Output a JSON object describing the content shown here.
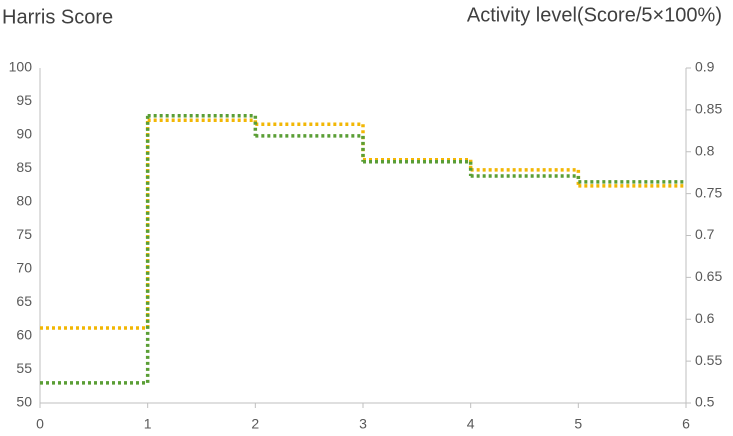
{
  "chart_data": {
    "type": "step",
    "title_left": "Harris Score",
    "title_right": "Activity level(Score/5×100%)",
    "xlim": [
      0,
      6
    ],
    "xticks": [
      0,
      1,
      2,
      3,
      4,
      5,
      6
    ],
    "ylim": [
      50,
      100
    ],
    "yticks": [
      50,
      55,
      60,
      65,
      70,
      75,
      80,
      85,
      90,
      95,
      100
    ],
    "y2lim": [
      0.5,
      0.9
    ],
    "y2ticks": [
      0.5,
      0.55,
      0.6,
      0.65,
      0.7,
      0.75,
      0.8,
      0.85,
      0.9
    ],
    "x": [
      0,
      1,
      2,
      3,
      4,
      5
    ],
    "series": [
      {
        "color": "#f2b705",
        "values": [
          61.2,
          92.2,
          91.6,
          86.3,
          84.8,
          82.4
        ]
      },
      {
        "color": "#5a9e35",
        "axis": "y2",
        "values": [
          0.524,
          0.843,
          0.819,
          0.788,
          0.771,
          0.764
        ]
      }
    ]
  }
}
